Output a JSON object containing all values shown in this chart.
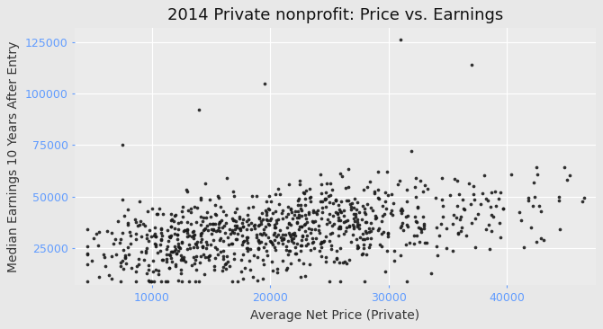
{
  "title": "2014 Private nonprofit: Price vs. Earnings",
  "xlabel": "Average Net Price (Private)",
  "ylabel": "Median Earnings 10 Years After Entry",
  "xlim": [
    3500,
    47500
  ],
  "ylim": [
    7000,
    132000
  ],
  "xticks": [
    10000,
    20000,
    30000,
    40000
  ],
  "yticks": [
    25000,
    50000,
    75000,
    100000,
    125000
  ],
  "panel_bg": "#EBEBEB",
  "strip_bg": "#D3D3D3",
  "outer_bg": "#E8E8E8",
  "grid_color": "#FFFFFF",
  "point_color": "#1a1a1a",
  "tick_color": "#619CFF",
  "axis_label_color": "#333333",
  "title_color": "#111111",
  "point_size": 7,
  "point_alpha": 0.9,
  "seed": 123,
  "title_fontsize": 13,
  "label_fontsize": 10,
  "tick_fontsize": 9
}
